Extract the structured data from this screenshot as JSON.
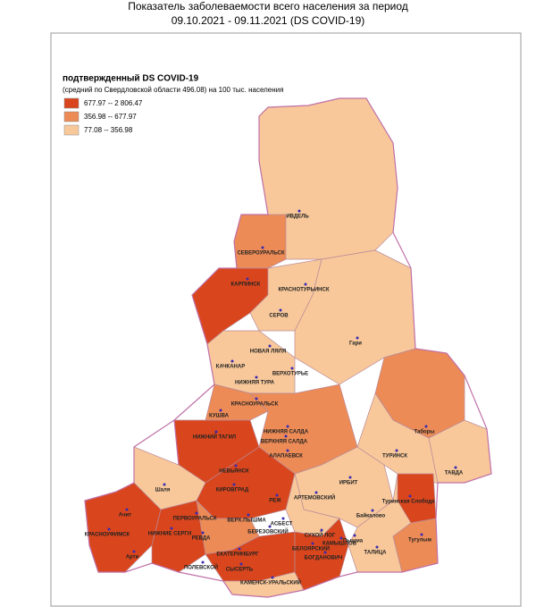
{
  "header": {
    "title_line1": "Показатель заболеваемости всего населения за период",
    "title_line2": "09.10.2021 - 09.11.2021 (DS  COVID-19)"
  },
  "legend": {
    "title": "подтвержденный DS  COVID-19",
    "subtitle": "(средний по Свердловской области 496.08)  на 100 тыс. населения",
    "items": [
      {
        "label": "677.97 -- 2 806.47",
        "color": "#d9461d"
      },
      {
        "label": "356.98 --     677.97",
        "color": "#ec8b56"
      },
      {
        "label": "77.08 --     356.98",
        "color": "#f8c89a"
      }
    ]
  },
  "cities": [
    "ИВДЕЛЬ",
    "СЕВЕРОУРАЛЬСК",
    "КАРПИНСК",
    "КРАСНОТУРЬИНСК",
    "СЕРОВ",
    "Гари",
    "НОВАЯ ЛЯЛЯ",
    "ВЕРХОТУРЬЕ",
    "КАЧКАНАР",
    "НИЖНЯЯ ТУРА",
    "КРАСНОУРАЛЬСК",
    "КУШВА",
    "НИЖНЯЯ САЛДА",
    "НИЖНИЙ ТАГИЛ",
    "ВЕРХНЯЯ САЛДА",
    "АЛАПАЕВСК",
    "Таборы",
    "ТУРИНСК",
    "ТАВДА",
    "НЕВЬЯНСК",
    "ИРБИТ",
    "Шаля",
    "КИРОВГРАД",
    "АРТЕМОВСКИЙ",
    "Туринская Слобода",
    "РЕЖ",
    "Ачит",
    "АСБЕСТ",
    "ВЕРХ.ПЫШМА",
    "Байкалово",
    "ПЕРВОУРАЛЬСК",
    "БЕРЕЗОВСКИЙ",
    "КРАСНОУФИМСК",
    "НИЖНИЕ СЕРГИ",
    "РЕВДА",
    "СУХОЙ ЛОГ",
    "КАМЫШЛОВ",
    "Пышма",
    "Тугулым",
    "БЕЛОЯРСКИЙ",
    "Арти",
    "ЕКАТЕРИНБУРГ",
    "БОГДАНОВИЧ",
    "ТАЛИЦА",
    "ПОЛЕВСКОЙ",
    "СЫСЕРТЬ",
    "КАМЕНСК-УРАЛЬСКИЙ"
  ]
}
